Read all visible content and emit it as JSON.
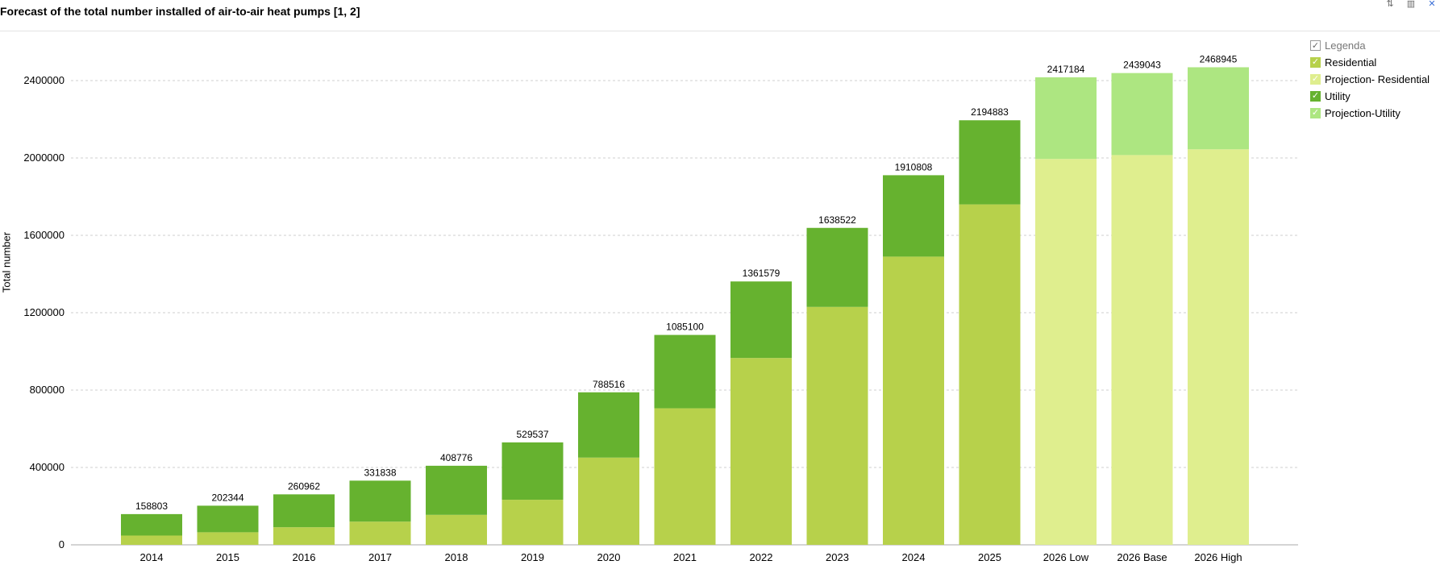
{
  "title": "Forecast of the total number installed of air-to-air heat pumps [1, 2]",
  "toolbar": {
    "icons": [
      "sort-icon",
      "columns-icon",
      "pin-icon"
    ]
  },
  "legend": {
    "title": "Legenda",
    "items": [
      {
        "label": "Residential",
        "color": "#b7d14b"
      },
      {
        "label": "Projection- Residential",
        "color": "#dfee8e"
      },
      {
        "label": "Utility",
        "color": "#66b22f"
      },
      {
        "label": "Projection-Utility",
        "color": "#ade681"
      }
    ]
  },
  "chart_data": {
    "type": "bar",
    "stacked": true,
    "ylabel": "Total number",
    "ylim": [
      0,
      2600000
    ],
    "yticks": [
      0,
      400000,
      800000,
      1200000,
      1600000,
      2000000,
      2400000
    ],
    "grid": true,
    "legend_position": "top-right",
    "categories": [
      "2014",
      "2015",
      "2016",
      "2017",
      "2018",
      "2019",
      "2020",
      "2021",
      "2022",
      "2023",
      "2024",
      "2025",
      "2026 Low",
      "2026 Base",
      "2026 High"
    ],
    "series": [
      {
        "name": "Residential",
        "color": "#b7d14b",
        "values": [
          48000,
          65000,
          91000,
          120000,
          155000,
          233000,
          451000,
          706000,
          966000,
          1230000,
          1490000,
          1760000,
          null,
          null,
          null
        ]
      },
      {
        "name": "Projection- Residential",
        "color": "#dfee8e",
        "values": [
          null,
          null,
          null,
          null,
          null,
          null,
          null,
          null,
          null,
          null,
          null,
          null,
          1995000,
          2015000,
          2045000
        ]
      },
      {
        "name": "Utility",
        "color": "#66b22f",
        "values": [
          110803,
          137344,
          169962,
          211838,
          253776,
          296537,
          337516,
          379100,
          395579,
          408522,
          420808,
          434883,
          null,
          null,
          null
        ]
      },
      {
        "name": "Projection-Utility",
        "color": "#ade681",
        "values": [
          null,
          null,
          null,
          null,
          null,
          null,
          null,
          null,
          null,
          null,
          null,
          null,
          422184,
          424043,
          423945
        ]
      }
    ],
    "totals": [
      158803,
      202344,
      260962,
      331838,
      408776,
      529537,
      788516,
      1085100,
      1361579,
      1638522,
      1910808,
      2194883,
      2417184,
      2439043,
      2468945
    ]
  }
}
